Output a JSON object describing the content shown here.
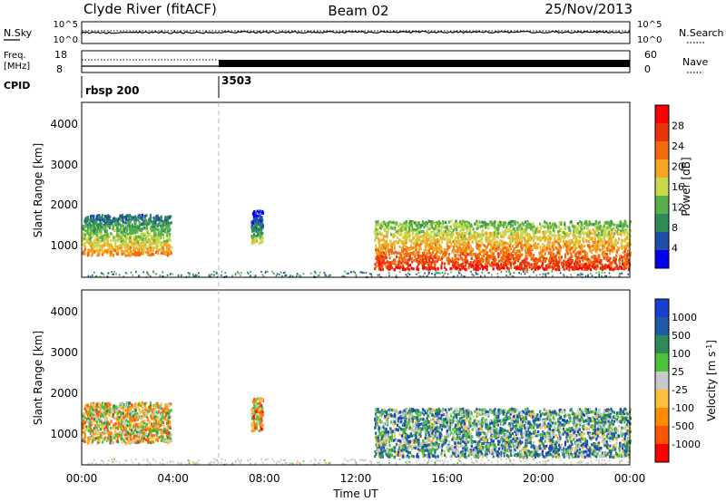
{
  "header": {
    "station": "Clyde River (fitACF)",
    "beam": "Beam 02",
    "date": "25/Nov/2013"
  },
  "noise_panel": {
    "left_label": "N.Sky",
    "right_label": "N.Search",
    "left_ticks": [
      "10^5",
      "10^0"
    ],
    "right_ticks": [
      "10^5",
      "10^0"
    ]
  },
  "freq_panel": {
    "left_label_1": "Freq.",
    "left_label_2": "[MHz]",
    "left_ticks": [
      "18",
      "8"
    ],
    "right_label": "Nave",
    "right_ticks": [
      "60",
      "0"
    ]
  },
  "cpid_panel": {
    "label": "CPID",
    "segments": [
      {
        "start_h": 0,
        "text": "rbsp 200"
      },
      {
        "start_h": 6,
        "text": "3503"
      }
    ]
  },
  "colors": {
    "power": [
      "#0000ee",
      "#1f4fa8",
      "#2e8b57",
      "#59b04b",
      "#c8d84a",
      "#f5a623",
      "#f26c0e",
      "#e8340a",
      "#ff0000"
    ],
    "velocity": [
      "#ff0000",
      "#ff5500",
      "#ff8c00",
      "#ffbf3a",
      "#c8c8c8",
      "#4cc23a",
      "#2e8b57",
      "#1e5aa8",
      "#1a3fd0"
    ]
  },
  "power_panel": {
    "ylabel": "Slant Range [km]",
    "yticks": [
      "1000",
      "2000",
      "3000",
      "4000"
    ],
    "cbar_label": "Power [dB]",
    "cbar_ticks": [
      "4",
      "8",
      "12",
      "16",
      "20",
      "24",
      "28"
    ]
  },
  "velocity_panel": {
    "ylabel": "Slant Range [km]",
    "yticks": [
      "1000",
      "2000",
      "3000",
      "4000"
    ],
    "cbar_label": "Velocity [m s",
    "cbar_label_sup": "-1",
    "cbar_label_end": "]",
    "cbar_ticks": [
      "-1000",
      "-500",
      "-100",
      "-25",
      "25",
      "100",
      "500",
      "1000"
    ]
  },
  "x_axis": {
    "ticks": [
      "00:00",
      "04:00",
      "08:00",
      "12:00",
      "16:00",
      "20:00",
      "00:00"
    ],
    "label": "Time UT"
  },
  "chart_data": {
    "type": "heatmap",
    "x_range_hours": [
      0,
      24
    ],
    "y_range_km": [
      180,
      4500
    ],
    "power_range_db": [
      0,
      32
    ],
    "velocity_range_ms": [
      -1200,
      1200
    ],
    "scatter_regions": [
      {
        "name": "early",
        "t_start": 0.0,
        "t_end": 3.9,
        "range_low_km": 750,
        "range_high_km": 1750,
        "power_db": 22,
        "velocity_ms": -150
      },
      {
        "name": "mid",
        "t_start": 7.4,
        "t_end": 7.9,
        "range_low_km": 1050,
        "range_high_km": 1850,
        "power_db": 16,
        "velocity_ms": -300
      },
      {
        "name": "late",
        "t_start": 12.8,
        "t_end": 24.0,
        "range_low_km": 400,
        "range_high_km": 1600,
        "power_db": 28,
        "velocity_ms": 400
      }
    ]
  }
}
